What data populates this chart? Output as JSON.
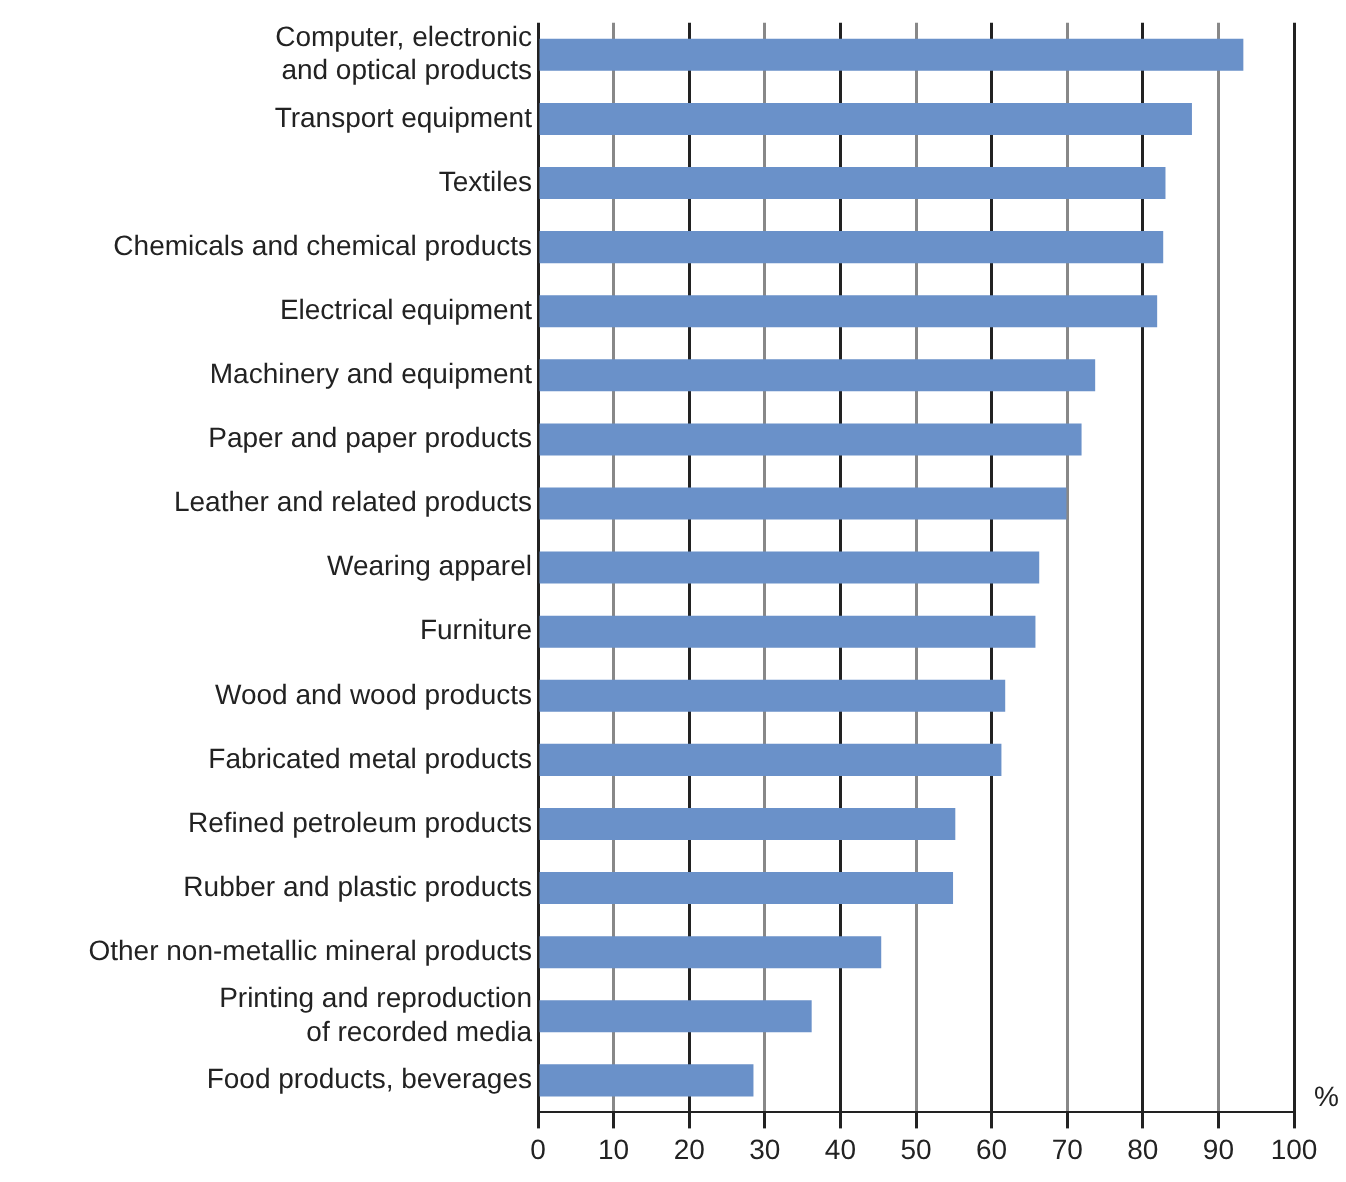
{
  "chart_data": {
    "type": "bar",
    "orientation": "horizontal",
    "xlabel": "%",
    "categories": [
      "Computer, electronic and optical products",
      "Transport equipment",
      "Textiles",
      "Chemicals and chemical products",
      "Electrical equipment",
      "Machinery and equipment",
      "Paper and paper products",
      "Leather and related products",
      "Wearing apparel",
      "Furniture",
      "Wood and wood products",
      "Fabricated metal products",
      "Refined petroleum products",
      "Rubber and plastic products",
      "Other non-metallic mineral products",
      "Printing and reproduction of recorded media",
      "Food products, beverages"
    ],
    "values": [
      93.3,
      86.5,
      83.0,
      82.7,
      81.9,
      73.7,
      71.9,
      69.9,
      66.3,
      65.8,
      61.8,
      61.3,
      55.2,
      54.9,
      45.4,
      36.2,
      28.5
    ],
    "color": "#6a91c9",
    "xlim": [
      0,
      100
    ],
    "xticks": [
      0,
      10,
      20,
      30,
      40,
      50,
      60,
      70,
      80,
      90,
      100
    ],
    "grid": "x",
    "legend": false
  }
}
